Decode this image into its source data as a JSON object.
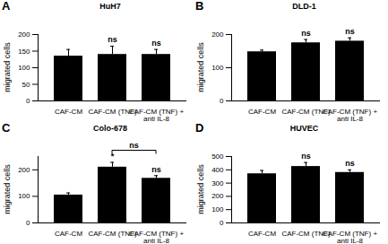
{
  "chart_data": [
    {
      "type": "bar",
      "panel": "A",
      "title": "HuH7",
      "y_label": "migrated cells",
      "categories": [
        "CAF-CM",
        "CAF-CM (TNF)",
        "CAF-CM (TNF) + anti IL-8"
      ],
      "values": [
        135,
        140,
        140
      ],
      "errors": [
        20,
        25,
        15
      ],
      "significance": [
        null,
        "ns",
        "ns"
      ],
      "color": "#000000",
      "ylim": [
        0,
        200
      ],
      "yticks": [
        0,
        50,
        100,
        150,
        200
      ]
    },
    {
      "type": "bar",
      "panel": "B",
      "title": "DLD-1",
      "y_label": "migrated cells",
      "categories": [
        "CAF-CM",
        "CAF-CM (TNF)",
        "CAF-CM (TNF) + anti IL-8"
      ],
      "values": [
        148,
        175,
        180
      ],
      "errors": [
        5,
        10,
        10
      ],
      "significance": [
        null,
        "ns",
        "ns"
      ],
      "color": "#000000",
      "ylim": [
        0,
        200
      ],
      "yticks": [
        0,
        100,
        200
      ]
    },
    {
      "type": "bar",
      "panel": "C",
      "title": "Colo-678",
      "y_label": "migrated cells",
      "categories": [
        "CAF-CM",
        "CAF-CM (TNF)",
        "CAF-CM (TNF) + anti IL-8"
      ],
      "values": [
        105,
        210,
        168
      ],
      "errors": [
        8,
        18,
        10
      ],
      "significance": [
        null,
        "*",
        "ns"
      ],
      "bracket": {
        "from": 1,
        "to": 2,
        "label": "ns"
      },
      "color": "#000000",
      "ylim": [
        0,
        250
      ],
      "yticks": [
        0,
        100,
        200
      ]
    },
    {
      "type": "bar",
      "panel": "D",
      "title": "HUVEC",
      "y_label": "migrated cells",
      "categories": [
        "CAF-CM",
        "CAF-CM (TNF)",
        "CAF-CM (TNF) + anti IL-8"
      ],
      "values": [
        370,
        425,
        380
      ],
      "errors": [
        25,
        30,
        20
      ],
      "significance": [
        null,
        "ns",
        "ns"
      ],
      "color": "#000000",
      "ylim": [
        0,
        500
      ],
      "yticks": [
        0,
        100,
        200,
        300,
        400,
        500
      ]
    }
  ]
}
